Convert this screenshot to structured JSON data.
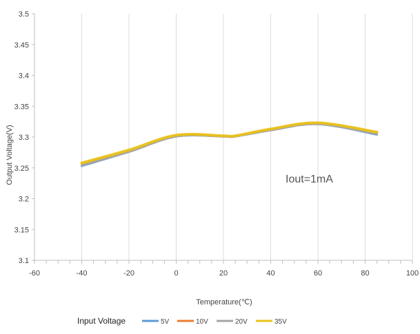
{
  "chart_data": {
    "type": "line",
    "title": "",
    "xlabel": "Temperature(℃)",
    "ylabel": "Output Voltage(V)",
    "xlim": [
      -60,
      100
    ],
    "ylim": [
      3.1,
      3.5
    ],
    "x_ticks": [
      "-60",
      "-40",
      "-20",
      "0",
      "20",
      "40",
      "60",
      "80",
      "100"
    ],
    "y_ticks": [
      "3.1",
      "3.15",
      "3.2",
      "3.25",
      "3.3",
      "3.35",
      "3.4",
      "3.45",
      "3.5"
    ],
    "grid": "vertical",
    "annotation": "Iout=1mA",
    "legend": {
      "title": "Input Voltage",
      "placement": "bottom"
    },
    "x": [
      -40,
      -20,
      0,
      20,
      25,
      40,
      60,
      85
    ],
    "series": [
      {
        "name": "5V",
        "color": "#5b9bd5",
        "values": [
          3.253,
          3.276,
          3.301,
          3.301,
          3.301,
          3.311,
          3.321,
          3.304
        ]
      },
      {
        "name": "10V",
        "color": "#ed7d31",
        "values": [
          3.256,
          3.277,
          3.302,
          3.301,
          3.301,
          3.312,
          3.322,
          3.306
        ]
      },
      {
        "name": "20V",
        "color": "#a5a5a5",
        "values": [
          3.254,
          3.276,
          3.301,
          3.301,
          3.301,
          3.311,
          3.321,
          3.305
        ]
      },
      {
        "name": "35V",
        "color": "#e8c21a",
        "values": [
          3.258,
          3.279,
          3.303,
          3.302,
          3.302,
          3.313,
          3.323,
          3.308
        ]
      }
    ]
  }
}
